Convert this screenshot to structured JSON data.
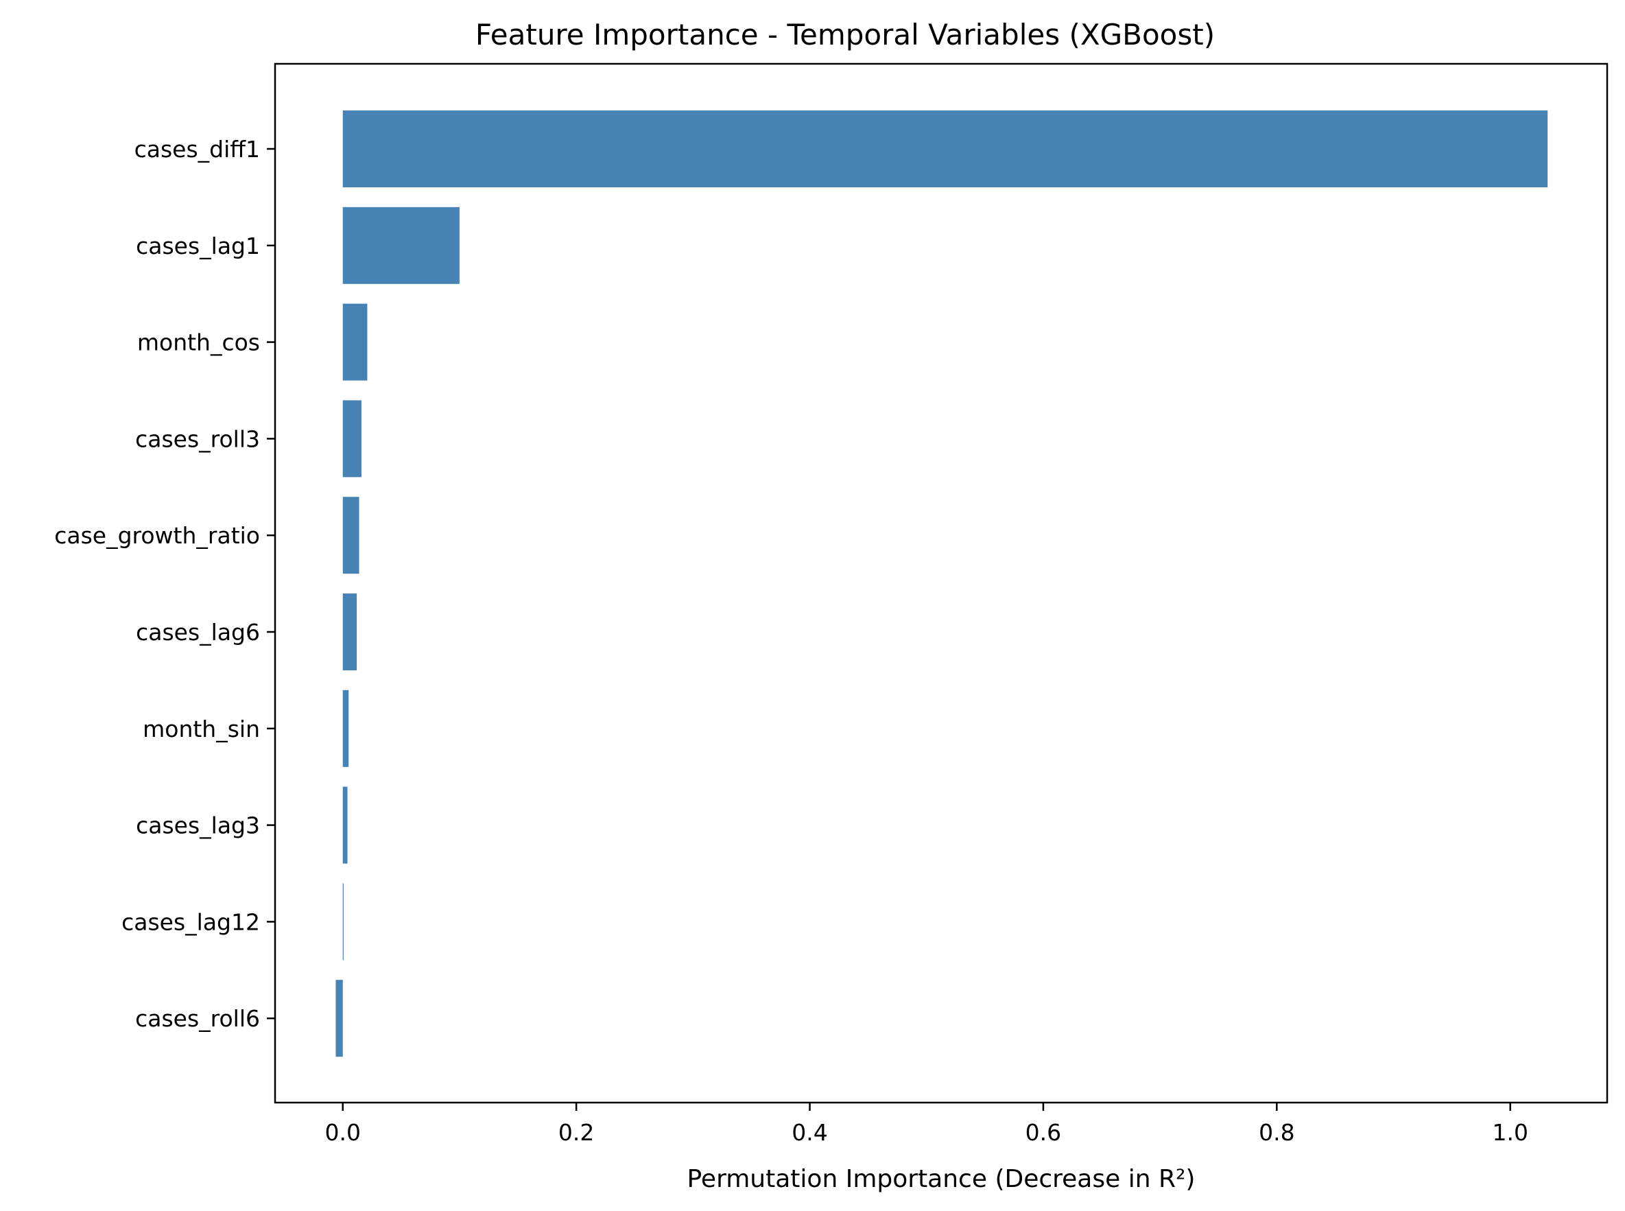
{
  "chart_data": {
    "type": "bar",
    "orientation": "horizontal",
    "title": "Feature Importance - Temporal Variables (XGBoost)",
    "xlabel": "Permutation Importance (Decrease in R²)",
    "ylabel": "",
    "xlim": [
      -0.058,
      1.083
    ],
    "xticks": [
      0.0,
      0.2,
      0.4,
      0.6,
      0.8,
      1.0
    ],
    "xtick_labels": [
      "0.0",
      "0.2",
      "0.4",
      "0.6",
      "0.8",
      "1.0"
    ],
    "grid": false,
    "bar_color": "#4682b4",
    "categories": [
      "cases_diff1",
      "cases_lag1",
      "month_cos",
      "cases_roll3",
      "case_growth_ratio",
      "cases_lag6",
      "month_sin",
      "cases_lag3",
      "cases_lag12",
      "cases_roll6"
    ],
    "values": [
      1.032,
      0.1,
      0.021,
      0.016,
      0.014,
      0.012,
      0.005,
      0.004,
      0.0005,
      -0.006
    ]
  }
}
